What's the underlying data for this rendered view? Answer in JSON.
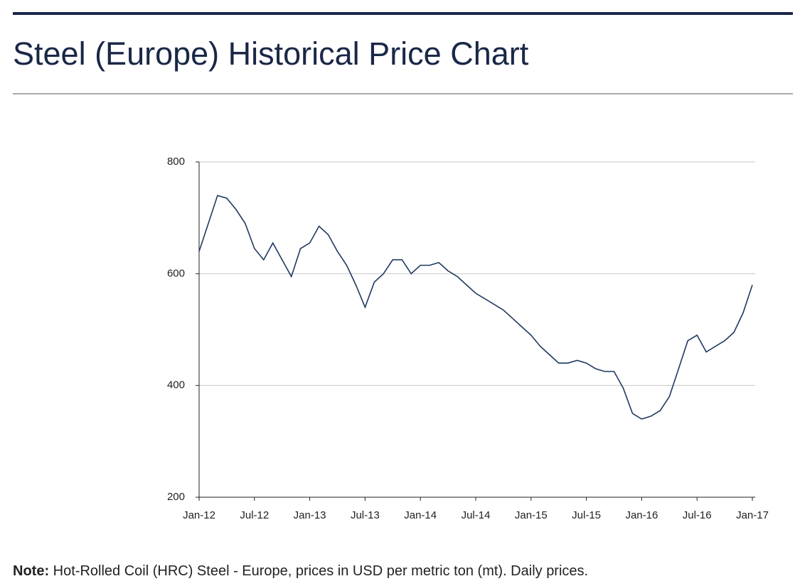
{
  "header": {
    "title": "Steel (Europe) Historical Price Chart"
  },
  "chart_data": {
    "type": "line",
    "x": [
      "2012-01",
      "2012-02",
      "2012-03",
      "2012-04",
      "2012-05",
      "2012-06",
      "2012-07",
      "2012-08",
      "2012-09",
      "2012-10",
      "2012-11",
      "2012-12",
      "2013-01",
      "2013-02",
      "2013-03",
      "2013-04",
      "2013-05",
      "2013-06",
      "2013-07",
      "2013-08",
      "2013-09",
      "2013-10",
      "2013-11",
      "2013-12",
      "2014-01",
      "2014-02",
      "2014-03",
      "2014-04",
      "2014-05",
      "2014-06",
      "2014-07",
      "2014-08",
      "2014-09",
      "2014-10",
      "2014-11",
      "2014-12",
      "2015-01",
      "2015-02",
      "2015-03",
      "2015-04",
      "2015-05",
      "2015-06",
      "2015-07",
      "2015-08",
      "2015-09",
      "2015-10",
      "2015-11",
      "2015-12",
      "2016-01",
      "2016-02",
      "2016-03",
      "2016-04",
      "2016-05",
      "2016-06",
      "2016-07",
      "2016-08",
      "2016-09",
      "2016-10",
      "2016-11",
      "2016-12",
      "2017-01"
    ],
    "values": [
      640,
      690,
      740,
      735,
      715,
      690,
      645,
      625,
      655,
      625,
      595,
      645,
      655,
      685,
      670,
      640,
      615,
      580,
      540,
      585,
      600,
      625,
      625,
      600,
      615,
      615,
      620,
      605,
      595,
      580,
      565,
      555,
      545,
      535,
      520,
      505,
      490,
      470,
      455,
      440,
      440,
      445,
      440,
      430,
      425,
      425,
      395,
      350,
      340,
      345,
      355,
      380,
      430,
      480,
      490,
      460,
      470,
      480,
      495,
      530,
      580
    ],
    "color": "#1f3a5f",
    "xlim": [
      "2012-01",
      "2017-01"
    ],
    "xticks": [
      {
        "value": "2012-01",
        "label": "Jan-12"
      },
      {
        "value": "2012-07",
        "label": "Jul-12"
      },
      {
        "value": "2013-01",
        "label": "Jan-13"
      },
      {
        "value": "2013-07",
        "label": "Jul-13"
      },
      {
        "value": "2014-01",
        "label": "Jan-14"
      },
      {
        "value": "2014-07",
        "label": "Jul-14"
      },
      {
        "value": "2015-01",
        "label": "Jan-15"
      },
      {
        "value": "2015-07",
        "label": "Jul-15"
      },
      {
        "value": "2016-01",
        "label": "Jan-16"
      },
      {
        "value": "2016-07",
        "label": "Jul-16"
      },
      {
        "value": "2017-01",
        "label": "Jan-17"
      }
    ],
    "ylim": [
      200,
      800
    ],
    "yticks": [
      200,
      400,
      600,
      800
    ],
    "grid": true
  },
  "note": {
    "label": "Note:",
    "text": "Hot-Rolled Coil (HRC) Steel - Europe, prices in USD per metric ton (mt). Daily prices."
  }
}
